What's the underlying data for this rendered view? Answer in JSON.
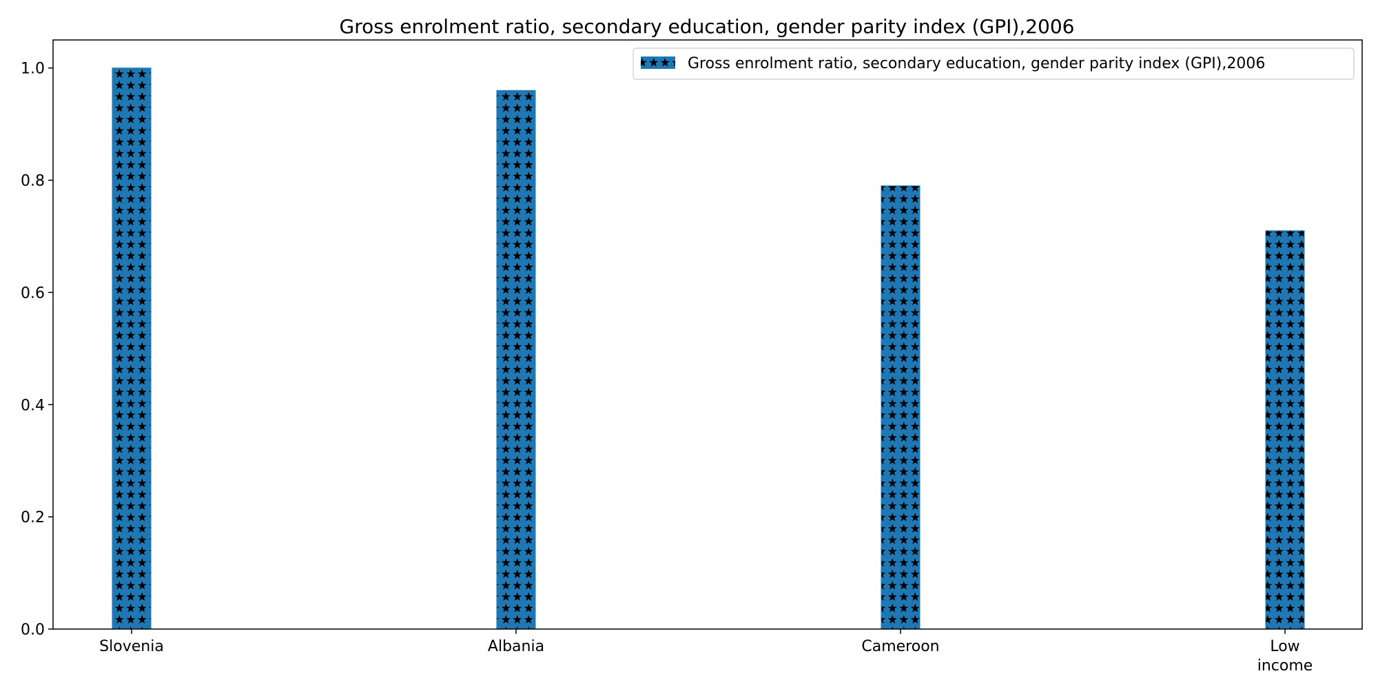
{
  "chart_data": {
    "type": "bar",
    "title": "Gross enrolment ratio, secondary education, gender parity index (GPI),2006",
    "xlabel": "",
    "ylabel": "",
    "categories": [
      [
        "Slovenia"
      ],
      [
        "Albania"
      ],
      [
        "Cameroon"
      ],
      [
        "Low",
        "income"
      ]
    ],
    "series": [
      {
        "name": "Gross enrolment ratio, secondary education, gender parity index (GPI),2006",
        "values": [
          1.0,
          0.96,
          0.79,
          0.71
        ],
        "color": "#1f77b4",
        "hatch": "stars"
      }
    ],
    "ylim": [
      0.0,
      1.05
    ],
    "yticks": [
      "0.0",
      "0.2",
      "0.4",
      "0.6",
      "0.8",
      "1.0"
    ],
    "grid": false,
    "legend": "top-right"
  }
}
